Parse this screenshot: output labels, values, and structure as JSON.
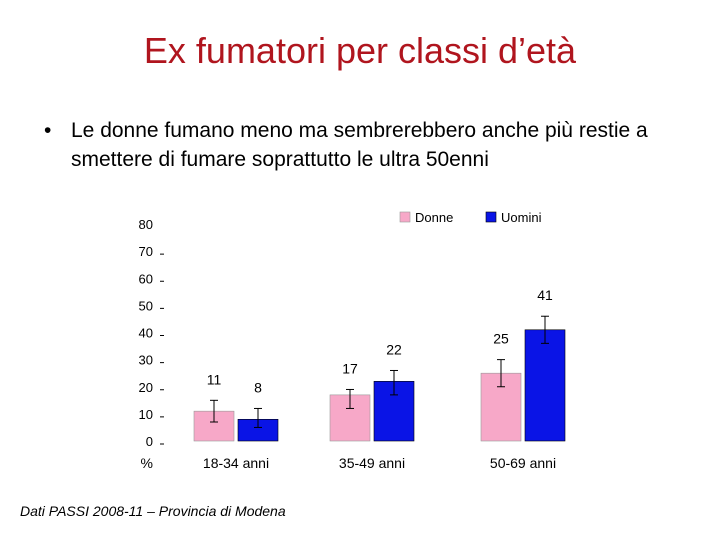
{
  "slide": {
    "title": "Ex fumatori per classi d’età",
    "bullet_symbol": "•",
    "bullet_text": "Le donne fumano meno ma sembrerebbero anche più restie a smettere di fumare soprattutto le ultra 50enni",
    "footer": "Dati PASSI 2008-11 – Provincia di Modena"
  },
  "chart_data": {
    "type": "bar",
    "categories": [
      "18-34 anni",
      "35-49 anni",
      "50-69 anni"
    ],
    "series": [
      {
        "name": "Donne",
        "values": [
          11,
          17,
          25
        ],
        "error_low": [
          7,
          12,
          20
        ],
        "error_high": [
          15,
          19,
          30
        ],
        "color": "#f7a8c8"
      },
      {
        "name": "Uomini",
        "values": [
          8,
          22,
          41
        ],
        "error_low": [
          5,
          17,
          36
        ],
        "error_high": [
          12,
          26,
          46
        ],
        "color": "#0a14e6"
      }
    ],
    "ylim": [
      0,
      80
    ],
    "yticks": [
      0,
      10,
      20,
      30,
      40,
      50,
      60,
      70,
      80
    ],
    "ylabel": "%",
    "legend": "top-right",
    "grid": false
  }
}
